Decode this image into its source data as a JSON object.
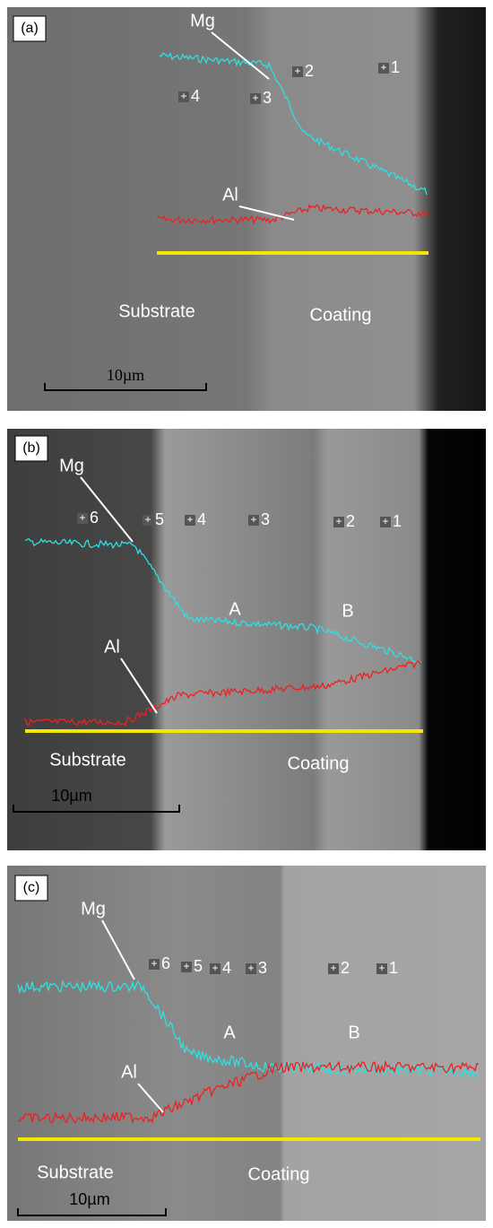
{
  "panels": [
    {
      "label": "(a)",
      "element_labels": [
        "Mg",
        "Al"
      ],
      "points": [
        "1",
        "2",
        "3",
        "4"
      ],
      "regions": [
        "Substrate",
        "Coating"
      ],
      "scale_bar": "10µm"
    },
    {
      "label": "(b)",
      "element_labels": [
        "Mg",
        "Al"
      ],
      "points": [
        "6",
        "5",
        "4",
        "3",
        "2",
        "1"
      ],
      "regions": [
        "A",
        "B",
        "Substrate",
        "Coating"
      ],
      "scale_bar": "10µm"
    },
    {
      "label": "(c)",
      "element_labels": [
        "Mg",
        "Al"
      ],
      "points": [
        "6",
        "5",
        "4",
        "3",
        "2",
        "1"
      ],
      "regions": [
        "A",
        "B",
        "Substrate",
        "Coating"
      ],
      "scale_bar": "10µm"
    }
  ]
}
